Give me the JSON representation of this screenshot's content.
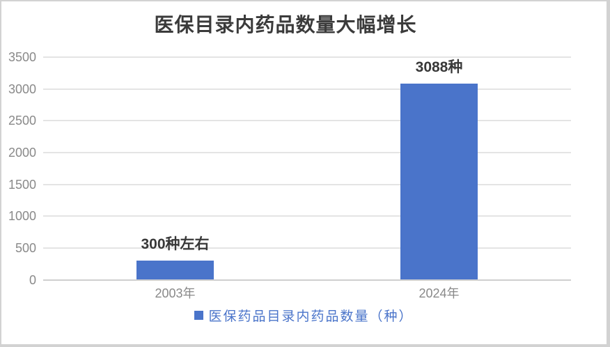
{
  "window": {
    "background": "#ffffff",
    "border_color": "#d2d2d2"
  },
  "colors": {
    "bar": "#4a74ca",
    "gridline": "#e4e4e4",
    "axis_line": "#cfcfcf",
    "tick_text": "#898989",
    "data_label_text": "#383838",
    "title_text": "#3b3b3b",
    "legend_text": "#4a74ca"
  },
  "chart_data": {
    "type": "bar",
    "title": "医保目录内药品数量大幅增长",
    "categories": [
      "2003年",
      "2024年"
    ],
    "series": [
      {
        "name": "医保药品目录内药品数量（种）",
        "values": [
          300,
          3088
        ]
      }
    ],
    "data_labels": [
      "300种左右",
      "3088种"
    ],
    "xlabel": "",
    "ylabel": "",
    "ylim": [
      0,
      3500
    ],
    "yticks": [
      0,
      500,
      1000,
      1500,
      2000,
      2500,
      3000,
      3500
    ],
    "grid": true,
    "legend_position": "bottom"
  }
}
